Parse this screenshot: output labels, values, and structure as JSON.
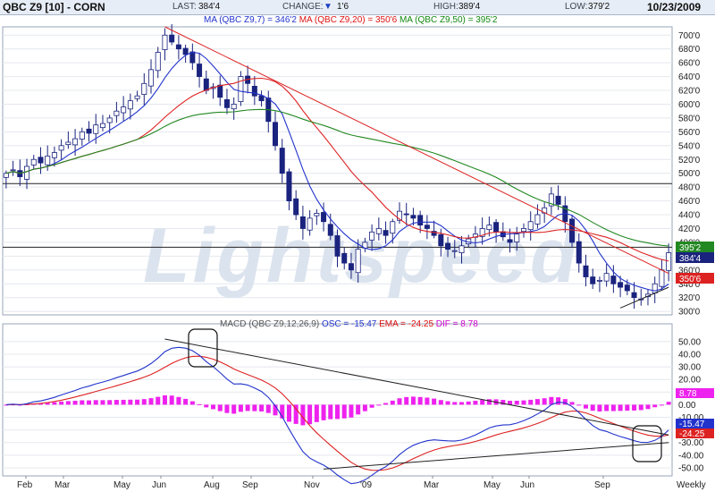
{
  "header": {
    "symbol": "QBC Z9 [10] - CORN",
    "last_label": "LAST:",
    "last_value": "384'4",
    "change_label": "CHANGE:",
    "change_value": "1'6",
    "high_label": "HIGH:",
    "high_value": "389'4",
    "low_label": "LOW:",
    "low_value": "379'2",
    "date": "10/23/2009"
  },
  "ma_legend": [
    {
      "text": "MA (QBC Z9,7) = 346'2",
      "color": "#2233cc"
    },
    {
      "text": "MA (QBC Z9,20) = 350'6",
      "color": "#dd1111"
    },
    {
      "text": "MA (QBC Z9,50) = 395'2",
      "color": "#118811"
    }
  ],
  "macd_legend": [
    {
      "text": "MACD (QBC Z9,12,26,9)",
      "color": "#555555"
    },
    {
      "text": "OSC = -15.47",
      "color": "#2233cc"
    },
    {
      "text": "EMA = -24.25",
      "color": "#dd1111"
    },
    {
      "text": "DIF = 8.78",
      "color": "#cc00cc"
    }
  ],
  "watermark": "Lightspeed",
  "colors": {
    "up": "#ffffff",
    "down": "#1a237e",
    "ma7": "#2233cc",
    "ma20": "#dd2222",
    "ma50": "#228822",
    "trend": "#dd2222",
    "macd": "#2233cc",
    "ema": "#dd2222",
    "hist": "#ee22ee"
  },
  "chart_data": [
    {
      "type": "candlestick",
      "title": "QBC Z9 [10] - CORN",
      "ylim": [
        295,
        712
      ],
      "yticks": [
        "300'0",
        "320'0",
        "340'0",
        "360'0",
        "380'0",
        "400'0",
        "420'0",
        "440'0",
        "460'0",
        "480'0",
        "500'0",
        "520'0",
        "540'0",
        "560'0",
        "580'0",
        "600'0",
        "620'0",
        "640'0",
        "660'0",
        "680'0",
        "700'0"
      ],
      "x_labels": [
        "Feb",
        "Mar",
        "May",
        "Jun",
        "Aug",
        "Sep",
        "Nov",
        "'09",
        "Mar",
        "May",
        "Jun",
        "Sep",
        "Weekly"
      ],
      "closes": [
        500,
        505,
        495,
        510,
        520,
        515,
        525,
        530,
        540,
        545,
        550,
        560,
        558,
        570,
        572,
        580,
        590,
        596,
        605,
        612,
        630,
        650,
        675,
        700,
        690,
        680,
        672,
        660,
        640,
        620,
        625,
        610,
        595,
        600,
        640,
        630,
        612,
        605,
        575,
        540,
        500,
        460,
        440,
        420,
        435,
        442,
        430,
        410,
        380,
        370,
        360,
        390,
        400,
        415,
        420,
        410,
        430,
        445,
        440,
        435,
        425,
        420,
        410,
        395,
        390,
        388,
        395,
        405,
        412,
        420,
        425,
        415,
        408,
        400,
        412,
        420,
        430,
        440,
        450,
        470,
        455,
        430,
        400,
        370,
        350,
        340,
        345,
        355,
        340,
        335,
        330,
        320,
        318,
        325,
        340,
        360,
        385
      ],
      "price_labels": [
        {
          "label": "395'2",
          "value": 395.25,
          "color": "#228822"
        },
        {
          "label": "384'4",
          "value": 384.5,
          "color": "#1a237e"
        },
        {
          "label": "350'6",
          "value": 350.75,
          "color": "#dd2222"
        }
      ],
      "series": [
        {
          "name": "MA (QBC Z9,7)",
          "color": "#2233cc"
        },
        {
          "name": "MA (QBC Z9,20)",
          "color": "#dd2222"
        },
        {
          "name": "MA (QBC Z9,50)",
          "color": "#228822"
        }
      ],
      "annotations": {
        "hlines": [
          485,
          393
        ]
      }
    },
    {
      "type": "line+bar",
      "title": "MACD (QBC Z9,12,26,9)",
      "ylim": [
        -55,
        57
      ],
      "yticks": [
        "50.00",
        "40.00",
        "30.00",
        "20.00",
        "10.00",
        "0.00",
        "-10.00",
        "-20.00",
        "-30.00",
        "-40.00",
        "-50.00"
      ],
      "series": [
        {
          "name": "OSC",
          "value": -15.47,
          "label": "-15.47",
          "color": "#2233cc"
        },
        {
          "name": "EMA",
          "value": -24.25,
          "label": "-24.25",
          "color": "#dd2222"
        },
        {
          "name": "DIF",
          "value": 8.78,
          "label": "8.78",
          "color": "#ee22ee"
        }
      ]
    }
  ]
}
